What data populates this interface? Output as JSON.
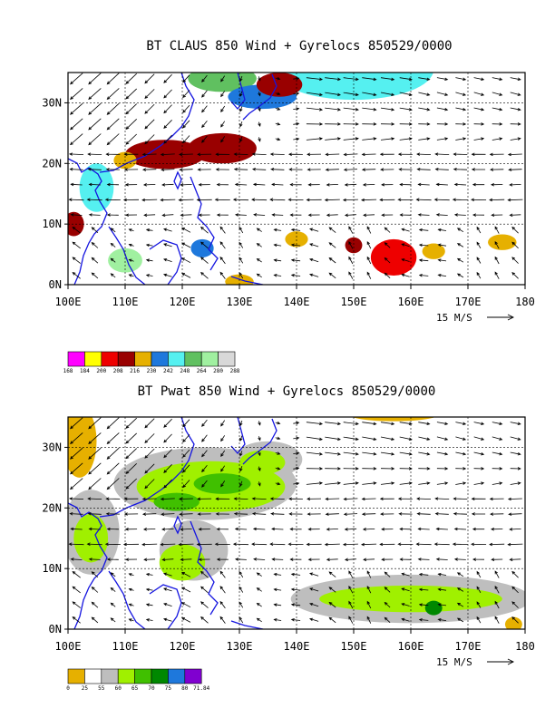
{
  "chart_data": [
    {
      "type": "heatmap",
      "title": "BT CLAUS 850 Wind + Gyrelocs 850529/0000",
      "x_ticks": [
        "100E",
        "110E",
        "120E",
        "130E",
        "140E",
        "150E",
        "160E",
        "170E",
        "180"
      ],
      "y_ticks": [
        "0N",
        "10N",
        "20N",
        "30N"
      ],
      "xlim": [
        100,
        180
      ],
      "ylim": [
        0,
        35
      ],
      "grid": true,
      "vector_reference": "15 M/S",
      "legend_levels": [
        "168",
        "184",
        "200",
        "208",
        "216",
        "230",
        "242",
        "248",
        "264",
        "280",
        "288"
      ],
      "legend_colors": [
        "#ff00ff",
        "#ffff00",
        "#ee0000",
        "#990000",
        "#e6b000",
        "#1e78dc",
        "#55f0f0",
        "#60c060",
        "#a0f0a0",
        "#d8d8d8"
      ],
      "blobs": [
        {
          "lon": 150,
          "lat": 35.5,
          "rx": 14,
          "ry": 5,
          "level": 6
        },
        {
          "lon": 127,
          "lat": 34,
          "rx": 6,
          "ry": 2.2,
          "level": 7
        },
        {
          "lon": 117,
          "lat": 21.5,
          "rx": 7,
          "ry": 2.4,
          "level": 3
        },
        {
          "lon": 127,
          "lat": 22.5,
          "rx": 6,
          "ry": 2.5,
          "level": 3
        },
        {
          "lon": 134,
          "lat": 31,
          "rx": 6,
          "ry": 2,
          "level": 5
        },
        {
          "lon": 137,
          "lat": 33,
          "rx": 4,
          "ry": 2,
          "level": 3
        },
        {
          "lon": 110,
          "lat": 20.5,
          "rx": 2,
          "ry": 1.4,
          "level": 4
        },
        {
          "lon": 101,
          "lat": 10,
          "rx": 1.8,
          "ry": 2,
          "level": 3
        },
        {
          "lon": 105,
          "lat": 16,
          "rx": 3,
          "ry": 4,
          "level": 6
        },
        {
          "lon": 123.5,
          "lat": 6,
          "rx": 2,
          "ry": 1.5,
          "level": 5
        },
        {
          "lon": 130,
          "lat": 0.5,
          "rx": 2.5,
          "ry": 1.2,
          "level": 4
        },
        {
          "lon": 140,
          "lat": 7.5,
          "rx": 2,
          "ry": 1.3,
          "level": 4
        },
        {
          "lon": 150,
          "lat": 6.5,
          "rx": 1.5,
          "ry": 1.3,
          "level": 3
        },
        {
          "lon": 157,
          "lat": 4.5,
          "rx": 4,
          "ry": 3,
          "level": 2
        },
        {
          "lon": 164,
          "lat": 5.5,
          "rx": 2,
          "ry": 1.3,
          "level": 4
        },
        {
          "lon": 176,
          "lat": 7,
          "rx": 2.5,
          "ry": 1.3,
          "level": 4
        },
        {
          "lon": 110,
          "lat": 4,
          "rx": 3,
          "ry": 2,
          "level": 8
        }
      ]
    },
    {
      "type": "heatmap",
      "title": "BT Pwat 850 Wind + Gyrelocs 850529/0000",
      "x_ticks": [
        "100E",
        "110E",
        "120E",
        "130E",
        "140E",
        "150E",
        "160E",
        "170E",
        "180"
      ],
      "y_ticks": [
        "0N",
        "10N",
        "20N",
        "30N"
      ],
      "xlim": [
        100,
        180
      ],
      "ylim": [
        0,
        35
      ],
      "grid": true,
      "vector_reference": "15 M/S",
      "legend_levels": [
        "0",
        "25",
        "55",
        "60",
        "65",
        "70",
        "75",
        "80",
        "71.84"
      ],
      "legend_colors": [
        "#e6b000",
        "#ffffff",
        "#bebebe",
        "#a0f000",
        "#40c000",
        "#008800",
        "#1e78dc",
        "#8000d0"
      ],
      "blobs": [
        {
          "lon": 102,
          "lat": 31,
          "rx": 3,
          "ry": 6,
          "level": 0
        },
        {
          "lon": 157,
          "lat": 35.5,
          "rx": 8,
          "ry": 1.2,
          "level": 0
        },
        {
          "lon": 178,
          "lat": 0.8,
          "rx": 1.5,
          "ry": 1.2,
          "level": 0
        },
        {
          "lon": 124,
          "lat": 24,
          "rx": 16,
          "ry": 6,
          "level": 2
        },
        {
          "lon": 135,
          "lat": 28,
          "rx": 6,
          "ry": 3,
          "level": 2
        },
        {
          "lon": 104,
          "lat": 16,
          "rx": 5,
          "ry": 7,
          "level": 2
        },
        {
          "lon": 122,
          "lat": 13,
          "rx": 6,
          "ry": 5,
          "level": 2
        },
        {
          "lon": 160,
          "lat": 5,
          "rx": 21,
          "ry": 4,
          "level": 2
        },
        {
          "lon": 125,
          "lat": 23.5,
          "rx": 13,
          "ry": 4.2,
          "level": 3
        },
        {
          "lon": 134,
          "lat": 27.5,
          "rx": 4,
          "ry": 2,
          "level": 3
        },
        {
          "lon": 104,
          "lat": 15,
          "rx": 3,
          "ry": 4,
          "level": 3
        },
        {
          "lon": 120,
          "lat": 11,
          "rx": 4,
          "ry": 3,
          "level": 3
        },
        {
          "lon": 160,
          "lat": 5,
          "rx": 16,
          "ry": 2.2,
          "level": 3
        },
        {
          "lon": 119,
          "lat": 21,
          "rx": 4,
          "ry": 1.5,
          "level": 4
        },
        {
          "lon": 127,
          "lat": 24,
          "rx": 5,
          "ry": 1.7,
          "level": 4
        },
        {
          "lon": 164,
          "lat": 3.5,
          "rx": 1.5,
          "ry": 1.2,
          "level": 5
        }
      ]
    }
  ]
}
